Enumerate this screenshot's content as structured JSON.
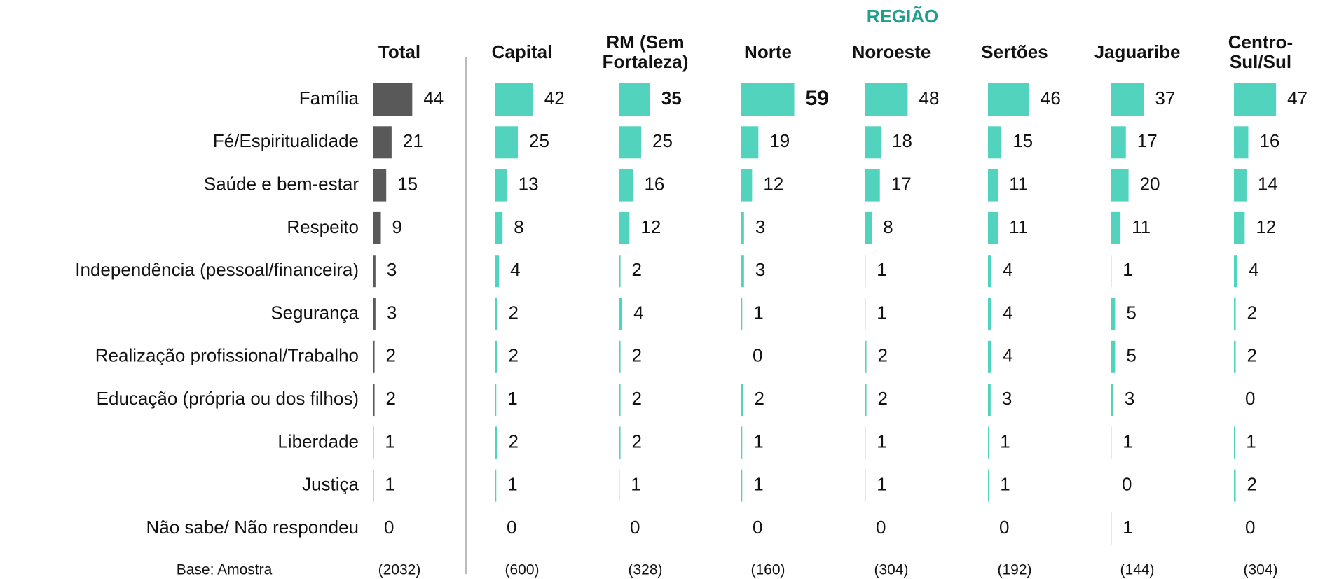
{
  "chart_data": {
    "type": "bar",
    "categories": [
      "Família",
      "Fé/Espiritualidade",
      "Saúde e bem-estar",
      "Respeito",
      "Independência (pessoal/financeira)",
      "Segurança",
      "Realização profissional/Trabalho",
      "Educação (própria ou dos filhos)",
      "Liberdade",
      "Justiça",
      "Não sabe/ Não respondeu"
    ],
    "group": {
      "title": "REGIÃO",
      "color": "#1f9e8e"
    },
    "highlight": {
      "category": 0,
      "min_color": "#d81b60",
      "max_color": "#1b6fc2"
    },
    "series": [
      {
        "name": "Total",
        "color": "#595959",
        "values": [
          44,
          21,
          15,
          9,
          3,
          3,
          2,
          2,
          1,
          1,
          0
        ]
      },
      {
        "name": "Capital",
        "color": "#52d3bd",
        "values": [
          42,
          25,
          13,
          8,
          4,
          2,
          2,
          1,
          2,
          1,
          0
        ]
      },
      {
        "name": "RM (Sem\nFortaleza)",
        "color": "#52d3bd",
        "values": [
          35,
          25,
          16,
          12,
          2,
          4,
          2,
          2,
          2,
          1,
          0
        ]
      },
      {
        "name": "Norte",
        "color": "#52d3bd",
        "values": [
          59,
          19,
          12,
          3,
          3,
          1,
          0,
          2,
          1,
          1,
          0
        ]
      },
      {
        "name": "Noroeste",
        "color": "#52d3bd",
        "values": [
          48,
          18,
          17,
          8,
          1,
          1,
          2,
          2,
          1,
          1,
          0
        ]
      },
      {
        "name": "Sertões",
        "color": "#52d3bd",
        "values": [
          46,
          15,
          11,
          11,
          4,
          4,
          4,
          3,
          1,
          1,
          0
        ]
      },
      {
        "name": "Jaguaribe",
        "color": "#52d3bd",
        "values": [
          37,
          17,
          20,
          11,
          1,
          5,
          5,
          3,
          1,
          0,
          1
        ]
      },
      {
        "name": "Centro-\nSul/Sul",
        "color": "#52d3bd",
        "values": [
          47,
          16,
          14,
          12,
          4,
          2,
          2,
          0,
          1,
          2,
          0
        ]
      }
    ],
    "base_title": "Base: Amostra",
    "bases": [
      2032,
      600,
      328,
      160,
      304,
      192,
      144,
      304
    ],
    "base_labels": [
      "(2032)",
      "(600)",
      "(328)",
      "(160)",
      "(304)",
      "(192)",
      "(144)",
      "(304)"
    ]
  }
}
